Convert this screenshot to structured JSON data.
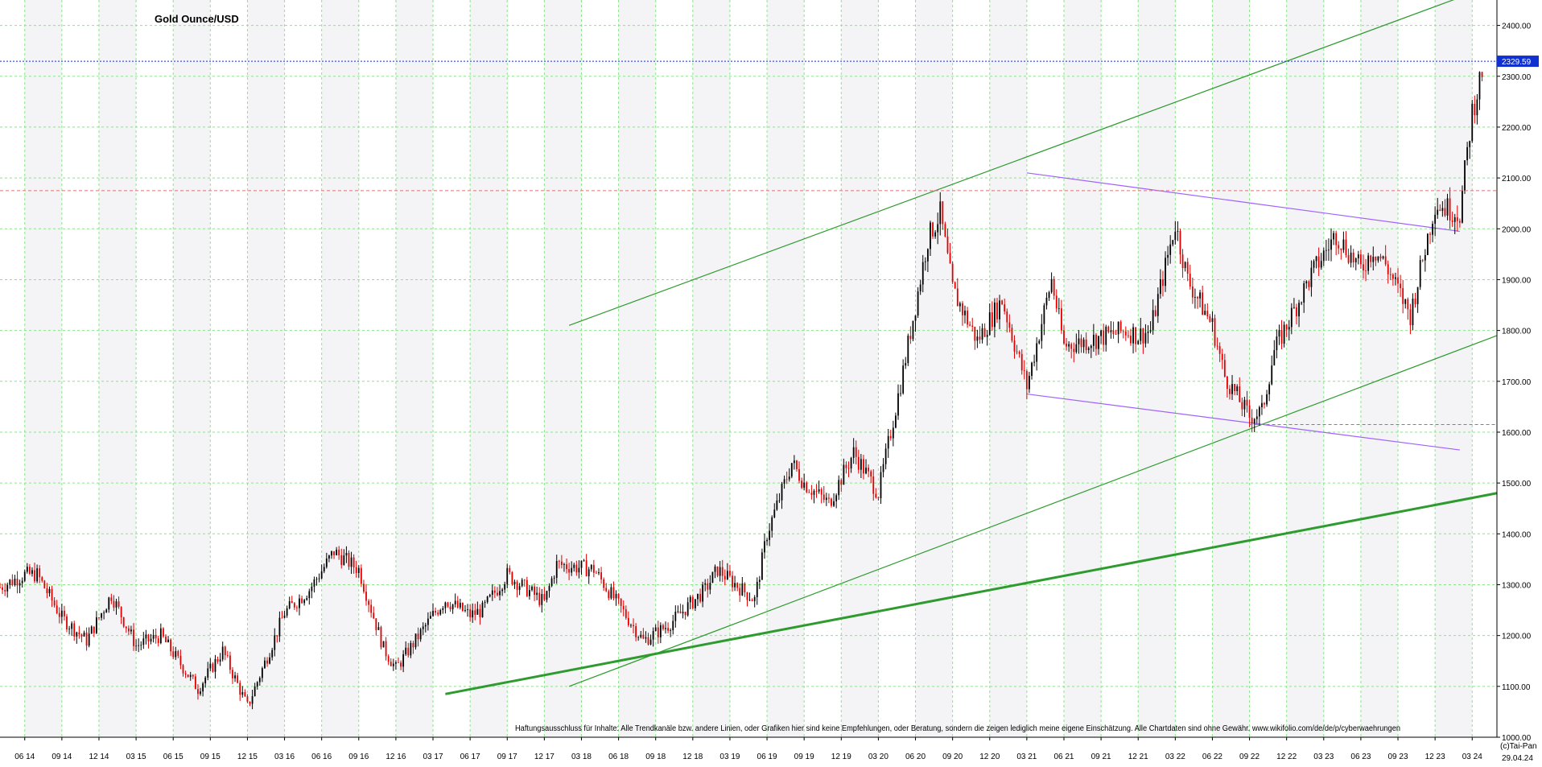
{
  "chart_data": {
    "type": "line",
    "title": "Gold Ounce/USD",
    "ylim": [
      1000,
      2450
    ],
    "y_ticks": [
      1000,
      1100,
      1200,
      1300,
      1400,
      1500,
      1600,
      1700,
      1800,
      1900,
      2000,
      2100,
      2200,
      2300,
      2400
    ],
    "y_tick_labels": [
      "1000.00",
      "1100.00",
      "1200.00",
      "1300.00",
      "1400.00",
      "1500.00",
      "1600.00",
      "1700.00",
      "1800.00",
      "1900.00",
      "2000.00",
      "2100.00",
      "2200.00",
      "2300.00",
      "2400.00"
    ],
    "x_tick_labels": [
      "06 14",
      "09 14",
      "12 14",
      "03 15",
      "06 15",
      "09 15",
      "12 15",
      "03 16",
      "06 16",
      "09 16",
      "12 16",
      "03 17",
      "06 17",
      "09 17",
      "12 17",
      "03 18",
      "06 18",
      "09 18",
      "12 18",
      "03 19",
      "06 19",
      "09 19",
      "12 19",
      "03 20",
      "06 20",
      "09 20",
      "12 20",
      "03 21",
      "06 21",
      "09 21",
      "12 21",
      "03 22",
      "06 22",
      "09 22",
      "12 22",
      "03 23",
      "06 23",
      "09 23",
      "12 23",
      "03 24"
    ],
    "x_range": [
      "2014-04",
      "2024-05"
    ],
    "current_price": 2329.59,
    "current_price_label": "2329.59",
    "last_date_label": "29.04.24",
    "credit": "(c)Tai-Pan",
    "grid": true,
    "series": [
      {
        "type": "candlestick",
        "x": [
          "2014-04",
          "2014-06",
          "2014-07",
          "2014-09",
          "2014-11",
          "2015-01",
          "2015-03",
          "2015-05",
          "2015-08",
          "2015-10",
          "2015-12",
          "2016-03",
          "2016-05",
          "2016-07",
          "2016-09",
          "2016-11",
          "2016-12",
          "2017-03",
          "2017-04",
          "2017-06",
          "2017-07",
          "2017-09",
          "2017-12",
          "2018-01",
          "2018-04",
          "2018-06",
          "2018-08",
          "2018-10",
          "2019-01",
          "2019-02",
          "2019-05",
          "2019-06",
          "2019-08",
          "2019-09",
          "2019-11",
          "2020-01",
          "2020-03",
          "2020-05",
          "2020-07",
          "2020-08",
          "2020-09",
          "2020-11",
          "2021-01",
          "2021-03",
          "2021-05",
          "2021-06",
          "2021-08",
          "2021-11",
          "2021-12",
          "2022-01",
          "2022-03",
          "2022-04",
          "2022-06",
          "2022-07",
          "2022-09",
          "2022-10",
          "2022-11",
          "2022-12",
          "2023-02",
          "2023-04",
          "2023-06",
          "2023-07",
          "2023-08",
          "2023-10",
          "2023-12",
          "2024-01",
          "2024-02",
          "2024-03",
          "2024-04"
        ],
        "close": [
          1295,
          1320,
          1320,
          1235,
          1190,
          1280,
          1180,
          1200,
          1095,
          1170,
          1060,
          1245,
          1290,
          1365,
          1330,
          1175,
          1135,
          1240,
          1270,
          1240,
          1250,
          1320,
          1265,
          1340,
          1330,
          1260,
          1190,
          1220,
          1290,
          1330,
          1270,
          1400,
          1540,
          1500,
          1460,
          1560,
          1480,
          1720,
          1980,
          2030,
          1880,
          1780,
          1860,
          1690,
          1900,
          1770,
          1780,
          1800,
          1790,
          1800,
          2010,
          1900,
          1810,
          1710,
          1630,
          1640,
          1760,
          1810,
          1910,
          1990,
          1920,
          1960,
          1930,
          1830,
          2050,
          2040,
          2030,
          2230,
          2330
        ]
      }
    ],
    "annotations": [
      {
        "type": "horizontal_line",
        "y": 2329.59,
        "style": "dotted",
        "color": "#1030d0"
      },
      {
        "type": "horizontal_line",
        "y": 2075,
        "style": "dashed",
        "color": "#e07070"
      },
      {
        "type": "horizontal_line",
        "y": 1615,
        "style": "dashed",
        "color": "#40b040",
        "from": "2022-09"
      },
      {
        "type": "trendline",
        "color": "#2e9b2e",
        "from": [
          "2017-04",
          1085
        ],
        "to": [
          "2024-05",
          1480
        ],
        "width": "thick"
      },
      {
        "type": "trendline",
        "color": "#2e9b2e",
        "from": [
          "2018-02",
          1100
        ],
        "to": [
          "2024-05",
          1790
        ]
      },
      {
        "type": "trendline",
        "color": "#2e9b2e",
        "from": [
          "2018-02",
          1810
        ],
        "to": [
          "2024-02",
          2455
        ]
      },
      {
        "type": "trendline",
        "color": "#a060ff",
        "from": [
          "2021-03",
          2110
        ],
        "to": [
          "2024-02",
          1995
        ]
      },
      {
        "type": "trendline",
        "color": "#a060ff",
        "from": [
          "2021-03",
          1675
        ],
        "to": [
          "2024-02",
          1565
        ]
      }
    ],
    "colors": {
      "up": "#000000",
      "down": "#e00000",
      "grid": "#90e090",
      "axis": "#000000"
    },
    "disclaimer": "Haftungsausschluss für Inhalte: Alle Trendkanäle bzw. andere Linien, oder Grafiken hier sind keine Empfehlungen, oder Beratung, sondern die zeigen lediglich meine eigene Einschätzung. Alle Chartdaten sind ohne Gewähr.  www.wikifolio.com/de/de/p/cyberwaehrungen"
  }
}
